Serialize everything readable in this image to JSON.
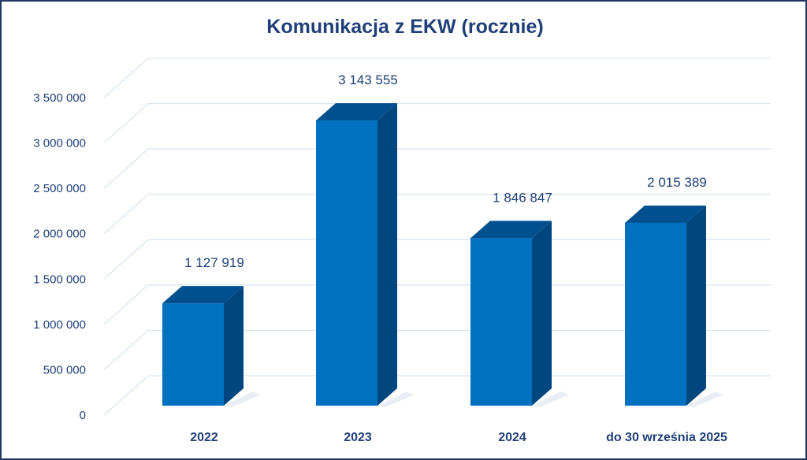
{
  "chart_data": {
    "type": "bar",
    "title": "Komunikacja z EKW (rocznie)",
    "categories": [
      "2022",
      "2023",
      "2024",
      "do 30 września 2025"
    ],
    "values": [
      1127919,
      3143555,
      1846847,
      2015389
    ],
    "data_labels": [
      "1 127 919",
      "3 143 555",
      "1 846 847",
      "2 015 389"
    ],
    "y_ticks": [
      0,
      500000,
      1000000,
      1500000,
      2000000,
      2500000,
      3000000,
      3500000
    ],
    "y_tick_labels": [
      "0",
      "500 000",
      "1 000 000",
      "1 500 000",
      "2 000 000",
      "2 500 000",
      "3 000 000",
      "3 500 000"
    ],
    "ylim": [
      0,
      3500000
    ],
    "xlabel": "",
    "ylabel": "",
    "grid": true,
    "legend": "none",
    "style": "3d-column"
  },
  "colors": {
    "bar_front": "#0070c0",
    "bar_side": "#00467f",
    "bar_top": "#00508f",
    "text": "#1f3f78",
    "grid": "#d6e3f0",
    "border": "#1f3864"
  }
}
